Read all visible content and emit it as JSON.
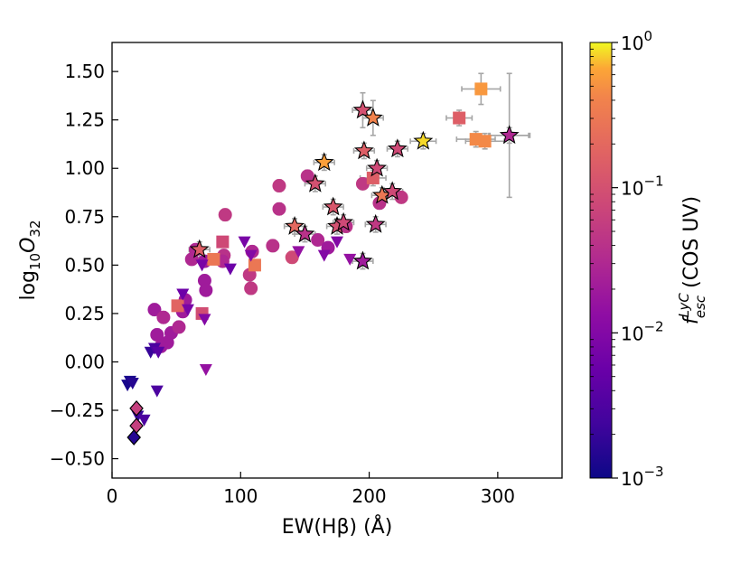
{
  "chart_data": {
    "type": "scatter",
    "xlabel": "EW(Hβ) (Å)",
    "ylabel": "log10O32",
    "xlim": [
      0,
      350
    ],
    "ylim": [
      -0.6,
      1.65
    ],
    "x_ticks": [
      0,
      100,
      200,
      300
    ],
    "x_tick_labels": [
      "0",
      "100",
      "200",
      "300"
    ],
    "y_ticks": [
      -0.5,
      -0.25,
      0.0,
      0.25,
      0.5,
      0.75,
      1.0,
      1.25,
      1.5
    ],
    "y_tick_labels": [
      "−0.50",
      "−0.25",
      "0.00",
      "0.25",
      "0.50",
      "0.75",
      "1.00",
      "1.25",
      "1.50"
    ],
    "colormap": "plasma",
    "colorbar": {
      "label": "f_esc^LyC (COS UV)",
      "scale": "log",
      "range": [
        0.001,
        1
      ],
      "tick_values": [
        0.001,
        0.01,
        0.1,
        1
      ],
      "tick_mantissa": "10",
      "tick_exponents": [
        "−3",
        "−2",
        "−1",
        "0"
      ],
      "label_parts": {
        "f": "f",
        "sup": "LyC",
        "sub": "esc",
        "rest": "(COS UV)"
      }
    },
    "series": [
      {
        "name": "circles (detections)",
        "marker": "circle",
        "points": [
          {
            "x": 62,
            "y": 0.53,
            "f": 0.03
          },
          {
            "x": 65,
            "y": 0.58,
            "f": 0.03
          },
          {
            "x": 72,
            "y": 0.52,
            "f": 0.02
          },
          {
            "x": 72,
            "y": 0.42,
            "f": 0.02
          },
          {
            "x": 73,
            "y": 0.37,
            "f": 0.02
          },
          {
            "x": 88,
            "y": 0.76,
            "f": 0.05
          },
          {
            "x": 87,
            "y": 0.55,
            "f": 0.04
          },
          {
            "x": 86,
            "y": 0.52,
            "f": 0.03
          },
          {
            "x": 107,
            "y": 0.45,
            "f": 0.05
          },
          {
            "x": 108,
            "y": 0.38,
            "f": 0.05
          },
          {
            "x": 109,
            "y": 0.57,
            "f": 0.03
          },
          {
            "x": 125,
            "y": 0.6,
            "f": 0.04
          },
          {
            "x": 130,
            "y": 0.91,
            "f": 0.05
          },
          {
            "x": 140,
            "y": 0.54,
            "f": 0.08
          },
          {
            "x": 130,
            "y": 0.79,
            "f": 0.04
          },
          {
            "x": 152,
            "y": 0.96,
            "f": 0.04
          },
          {
            "x": 160,
            "y": 0.63,
            "f": 0.03
          },
          {
            "x": 168,
            "y": 0.59,
            "f": 0.02
          },
          {
            "x": 182,
            "y": 0.7,
            "f": 0.04
          },
          {
            "x": 195,
            "y": 0.92,
            "f": 0.05
          },
          {
            "x": 208,
            "y": 0.82,
            "f": 0.04
          },
          {
            "x": 225,
            "y": 0.85,
            "f": 0.05
          },
          {
            "x": 33,
            "y": 0.27,
            "f": 0.02
          },
          {
            "x": 35,
            "y": 0.14,
            "f": 0.02
          },
          {
            "x": 40,
            "y": 0.23,
            "f": 0.03
          },
          {
            "x": 43,
            "y": 0.1,
            "f": 0.02
          },
          {
            "x": 46,
            "y": 0.15,
            "f": 0.02
          },
          {
            "x": 52,
            "y": 0.18,
            "f": 0.03
          },
          {
            "x": 55,
            "y": 0.26,
            "f": 0.02
          },
          {
            "x": 57,
            "y": 0.32,
            "f": 0.02
          },
          {
            "x": 38,
            "y": 0.08,
            "f": 0.02
          }
        ]
      },
      {
        "name": "squares (detections)",
        "marker": "square",
        "points": [
          {
            "x": 51,
            "y": 0.29,
            "f": 0.18
          },
          {
            "x": 70,
            "y": 0.25,
            "f": 0.09
          },
          {
            "x": 79,
            "y": 0.53,
            "f": 0.3
          },
          {
            "x": 86,
            "y": 0.62,
            "f": 0.08
          },
          {
            "x": 111,
            "y": 0.5,
            "f": 0.3
          },
          {
            "x": 203,
            "y": 0.95,
            "f": 0.15
          },
          {
            "x": 270,
            "y": 1.26,
            "f": 0.15
          },
          {
            "x": 283,
            "y": 1.15,
            "f": 0.45
          },
          {
            "x": 287,
            "y": 1.41,
            "f": 0.55
          },
          {
            "x": 290,
            "y": 1.14,
            "f": 0.45
          }
        ]
      },
      {
        "name": "triangles (upper limits)",
        "marker": "triangle-down",
        "points": [
          {
            "x": 12,
            "y": -0.12,
            "f": 0.0012
          },
          {
            "x": 14,
            "y": -0.1,
            "f": 0.0012
          },
          {
            "x": 16,
            "y": -0.11,
            "f": 0.0015
          },
          {
            "x": 20,
            "y": -0.28,
            "f": 0.002
          },
          {
            "x": 25,
            "y": -0.3,
            "f": 0.003
          },
          {
            "x": 30,
            "y": 0.05,
            "f": 0.002
          },
          {
            "x": 33,
            "y": 0.07,
            "f": 0.003
          },
          {
            "x": 35,
            "y": -0.15,
            "f": 0.003
          },
          {
            "x": 36,
            "y": 0.05,
            "f": 0.004
          },
          {
            "x": 55,
            "y": 0.35,
            "f": 0.006
          },
          {
            "x": 59,
            "y": 0.27,
            "f": 0.008
          },
          {
            "x": 70,
            "y": 0.5,
            "f": 0.008
          },
          {
            "x": 72,
            "y": 0.22,
            "f": 0.01
          },
          {
            "x": 73,
            "y": -0.04,
            "f": 0.015
          },
          {
            "x": 92,
            "y": 0.48,
            "f": 0.006
          },
          {
            "x": 103,
            "y": 0.62,
            "f": 0.008
          },
          {
            "x": 108,
            "y": 0.55,
            "f": 0.01
          },
          {
            "x": 145,
            "y": 0.57,
            "f": 0.015
          },
          {
            "x": 165,
            "y": 0.55,
            "f": 0.01
          },
          {
            "x": 175,
            "y": 0.62,
            "f": 0.01
          },
          {
            "x": 185,
            "y": 0.53,
            "f": 0.015
          }
        ]
      },
      {
        "name": "diamonds",
        "marker": "diamond",
        "points": [
          {
            "x": 17,
            "y": -0.39,
            "f": 0.0015
          },
          {
            "x": 19,
            "y": -0.33,
            "f": 0.06
          },
          {
            "x": 19,
            "y": -0.24,
            "f": 0.06
          }
        ]
      },
      {
        "name": "stars",
        "marker": "star",
        "points": [
          {
            "x": 68,
            "y": 0.58,
            "f": 0.15
          },
          {
            "x": 142,
            "y": 0.7,
            "f": 0.2
          },
          {
            "x": 150,
            "y": 0.66,
            "f": 0.04
          },
          {
            "x": 158,
            "y": 0.92,
            "f": 0.1
          },
          {
            "x": 165,
            "y": 1.03,
            "f": 0.6
          },
          {
            "x": 172,
            "y": 0.8,
            "f": 0.12
          },
          {
            "x": 175,
            "y": 0.7,
            "f": 0.1
          },
          {
            "x": 180,
            "y": 0.72,
            "f": 0.08
          },
          {
            "x": 195,
            "y": 1.3,
            "f": 0.1
          },
          {
            "x": 196,
            "y": 1.09,
            "f": 0.15
          },
          {
            "x": 195,
            "y": 0.52,
            "f": 0.02
          },
          {
            "x": 203,
            "y": 1.26,
            "f": 0.4
          },
          {
            "x": 206,
            "y": 1.0,
            "f": 0.08
          },
          {
            "x": 205,
            "y": 0.71,
            "f": 0.05
          },
          {
            "x": 210,
            "y": 0.86,
            "f": 0.3
          },
          {
            "x": 218,
            "y": 0.88,
            "f": 0.08
          },
          {
            "x": 222,
            "y": 1.1,
            "f": 0.08
          },
          {
            "x": 242,
            "y": 1.14,
            "f": 0.85
          },
          {
            "x": 309,
            "y": 1.17,
            "f": 0.03
          }
        ]
      }
    ]
  }
}
